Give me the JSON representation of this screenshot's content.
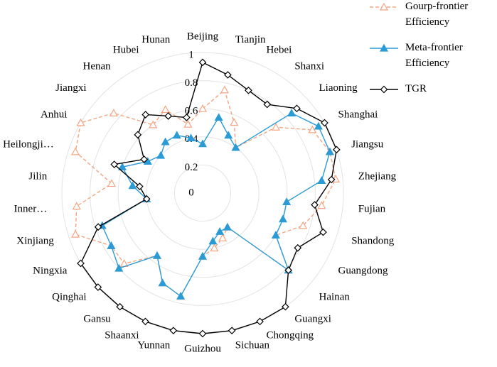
{
  "chart_data": {
    "type": "radar",
    "categories": [
      "Beijing",
      "Tianjin",
      "Hebei",
      "Shanxi",
      "Liaoning",
      "Shanghai",
      "Jiangsu",
      "Zhejiang",
      "Fujian",
      "Shandong",
      "Guangdong",
      "Hainan",
      "Guangxi",
      "Chongqing",
      "Sichuan",
      "Guizhou",
      "Yunnan",
      "Shaanxi",
      "Gansu",
      "Qinghai",
      "Ningxia",
      "Xinjiang",
      "Inner…",
      "Jilin",
      "Heilongji…",
      "Anhui",
      "Jiangxi",
      "Henan",
      "Hubei",
      "Hunan"
    ],
    "series": [
      {
        "name": "Gourp-frontier Efficiency",
        "color": "#f4a582",
        "marker": "triangle-open",
        "dashed": true,
        "values": [
          0.6,
          0.75,
          0.55,
          0.4,
          0.7,
          0.9,
          0.95,
          0.95,
          0.85,
          0.75,
          0.6,
          0.82,
          0.3,
          0.35,
          0.4,
          0.45,
          0.75,
          0.7,
          0.55,
          0.75,
          0.75,
          0.95,
          0.9,
          0.65,
          0.95,
          1.0,
          0.85,
          0.6,
          0.65,
          0.5
        ]
      },
      {
        "name": "Meta-frontier Efficiency",
        "color": "#2b9bd6",
        "marker": "triangle",
        "values": [
          0.35,
          0.55,
          0.45,
          0.4,
          0.85,
          0.95,
          0.95,
          0.85,
          0.6,
          0.6,
          0.6,
          0.82,
          0.3,
          0.3,
          0.35,
          0.45,
          0.75,
          0.7,
          0.55,
          0.8,
          0.75,
          0.75,
          0.4,
          0.5,
          0.6,
          0.45,
          0.4,
          0.45,
          0.45,
          0.4
        ]
      },
      {
        "name": "TGR",
        "color": "#000000",
        "marker": "diamond-open",
        "values": [
          0.93,
          0.86,
          0.8,
          0.78,
          0.9,
          1.0,
          1.0,
          0.92,
          0.8,
          0.9,
          0.78,
          0.82,
          1.0,
          1.0,
          1.0,
          1.0,
          1.0,
          1.0,
          1.0,
          1.0,
          1.0,
          0.78,
          0.4,
          0.45,
          0.66,
          0.48,
          0.62,
          0.69,
          0.6,
          0.55
        ]
      }
    ],
    "rlim": [
      0,
      1
    ],
    "rticks": [
      0,
      0.2,
      0.4,
      0.6,
      0.8,
      1
    ],
    "grid": true,
    "legend": "upper right"
  }
}
